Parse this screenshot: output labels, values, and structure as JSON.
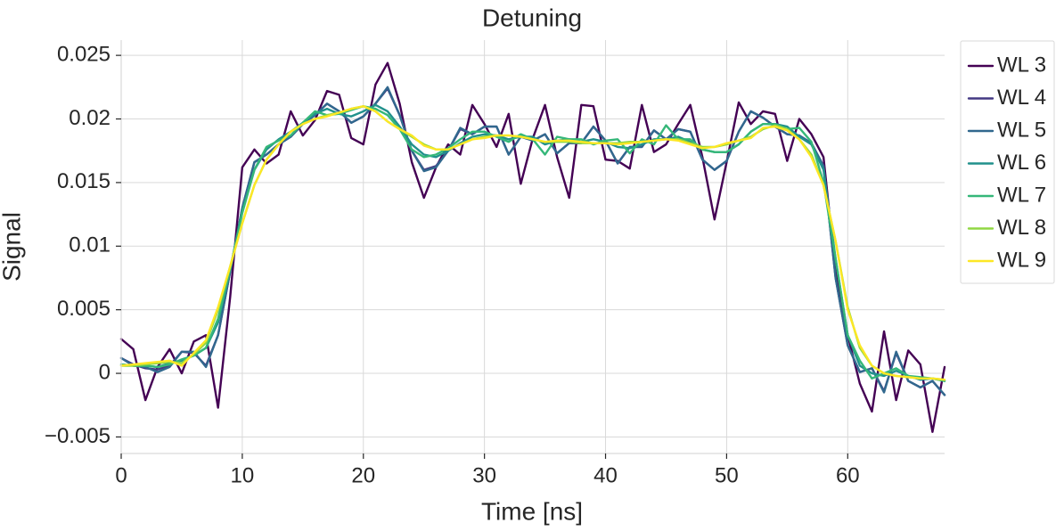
{
  "chart_data": {
    "type": "line",
    "title": "Detuning",
    "xlabel": "Time [ns]",
    "ylabel": "Signal",
    "xlim": [
      0,
      68
    ],
    "ylim": [
      -0.0063,
      0.0262
    ],
    "x_ticks": [
      0,
      10,
      20,
      30,
      40,
      50,
      60
    ],
    "x_tick_labels": [
      "0",
      "10",
      "20",
      "30",
      "40",
      "50",
      "60"
    ],
    "y_ticks": [
      -0.005,
      0,
      0.005,
      0.01,
      0.015,
      0.02,
      0.025
    ],
    "y_tick_labels": [
      "−0.005",
      "0",
      "0.005",
      "0.01",
      "0.015",
      "0.02",
      "0.025"
    ],
    "grid": true,
    "legend_position": "upper-right-outside",
    "x": [
      0,
      1,
      2,
      3,
      4,
      5,
      6,
      7,
      8,
      9,
      10,
      11,
      12,
      13,
      14,
      15,
      16,
      17,
      18,
      19,
      20,
      21,
      22,
      23,
      24,
      25,
      26,
      27,
      28,
      29,
      30,
      31,
      32,
      33,
      34,
      35,
      36,
      37,
      38,
      39,
      40,
      41,
      42,
      43,
      44,
      45,
      46,
      47,
      48,
      49,
      50,
      51,
      52,
      53,
      54,
      55,
      56,
      57,
      58,
      59,
      60,
      61,
      62,
      63,
      64,
      65,
      66,
      67,
      68
    ],
    "series": [
      {
        "name": "WL 3",
        "color": "#440154",
        "values": [
          0.0027,
          0.0019,
          -0.0021,
          0.0005,
          0.0019,
          0.0,
          0.0025,
          0.003,
          -0.0027,
          0.006,
          0.0162,
          0.0176,
          0.0165,
          0.0172,
          0.0206,
          0.0187,
          0.0199,
          0.0222,
          0.0219,
          0.0185,
          0.018,
          0.0227,
          0.0244,
          0.0212,
          0.0166,
          0.0138,
          0.0162,
          0.018,
          0.0172,
          0.0211,
          0.0196,
          0.0178,
          0.0204,
          0.0149,
          0.0185,
          0.0211,
          0.017,
          0.0138,
          0.0211,
          0.021,
          0.0168,
          0.0167,
          0.0161,
          0.0211,
          0.0174,
          0.018,
          0.0196,
          0.0211,
          0.017,
          0.0121,
          0.0166,
          0.0213,
          0.0196,
          0.0206,
          0.0204,
          0.0167,
          0.02,
          0.0188,
          0.017,
          0.008,
          0.003,
          -0.0008,
          -0.003,
          0.0033,
          -0.0021,
          0.0018,
          0.0007,
          -0.0046,
          0.0005
        ]
      },
      {
        "name": "WL 4",
        "color": "#443983",
        "values": [
          0.0012,
          0.0007,
          0.0004,
          0.0003,
          0.0006,
          0.0017,
          0.0016,
          0.0006,
          0.003,
          0.008,
          0.013,
          0.0166,
          0.0172,
          0.018,
          0.0186,
          0.0196,
          0.0203,
          0.0212,
          0.0206,
          0.0197,
          0.0202,
          0.0212,
          0.0224,
          0.0203,
          0.0175,
          0.016,
          0.0163,
          0.0175,
          0.0192,
          0.0188,
          0.0194,
          0.0194,
          0.0172,
          0.0186,
          0.0183,
          0.0188,
          0.0173,
          0.0181,
          0.0181,
          0.0194,
          0.0183,
          0.0165,
          0.0178,
          0.0178,
          0.0191,
          0.0184,
          0.0192,
          0.019,
          0.0168,
          0.016,
          0.0167,
          0.019,
          0.0206,
          0.0201,
          0.0194,
          0.0188,
          0.0187,
          0.0181,
          0.0163,
          0.0075,
          0.0022,
          0.0001,
          0.0004,
          -0.0014,
          0.0016,
          -0.0006,
          -0.0011,
          -0.0006,
          -0.0017
        ]
      },
      {
        "name": "WL 5",
        "color": "#31688e",
        "values": [
          0.0012,
          0.0006,
          0.0005,
          0.0001,
          0.0005,
          0.0017,
          0.0017,
          0.0005,
          0.003,
          0.008,
          0.013,
          0.0166,
          0.0172,
          0.018,
          0.0186,
          0.0196,
          0.0203,
          0.0212,
          0.0206,
          0.0197,
          0.0202,
          0.0212,
          0.0225,
          0.0203,
          0.0175,
          0.0159,
          0.0162,
          0.0175,
          0.0193,
          0.0188,
          0.0194,
          0.0194,
          0.0172,
          0.0186,
          0.0183,
          0.0188,
          0.0173,
          0.0181,
          0.0181,
          0.0194,
          0.0183,
          0.0165,
          0.0178,
          0.0178,
          0.0191,
          0.0184,
          0.0192,
          0.019,
          0.0168,
          0.016,
          0.0167,
          0.019,
          0.0206,
          0.0201,
          0.0194,
          0.0188,
          0.0187,
          0.0181,
          0.0163,
          0.0075,
          0.0022,
          0.0001,
          0.0004,
          -0.0015,
          0.0017,
          -0.0006,
          -0.0011,
          -0.0006,
          -0.0017
        ]
      },
      {
        "name": "WL 6",
        "color": "#21918c",
        "values": [
          0.0007,
          0.0006,
          0.0006,
          0.0005,
          0.0008,
          0.001,
          0.0014,
          0.002,
          0.004,
          0.0082,
          0.0128,
          0.016,
          0.0176,
          0.0184,
          0.019,
          0.0197,
          0.0204,
          0.0208,
          0.0204,
          0.0202,
          0.0206,
          0.0211,
          0.0206,
          0.0194,
          0.018,
          0.0172,
          0.017,
          0.0175,
          0.0181,
          0.0186,
          0.0188,
          0.0187,
          0.0184,
          0.0186,
          0.0186,
          0.018,
          0.0183,
          0.0184,
          0.0182,
          0.0184,
          0.0182,
          0.0178,
          0.0177,
          0.018,
          0.0184,
          0.0184,
          0.0186,
          0.0182,
          0.0176,
          0.0174,
          0.0174,
          0.018,
          0.019,
          0.0196,
          0.0196,
          0.0194,
          0.0186,
          0.018,
          0.016,
          0.009,
          0.003,
          0.0006,
          0.0,
          -0.0002,
          0.0002,
          -0.0002,
          -0.0005,
          -0.0004,
          -0.0006
        ]
      },
      {
        "name": "WL 7",
        "color": "#35b779",
        "values": [
          0.0007,
          0.0006,
          0.0006,
          0.0005,
          0.0007,
          0.0011,
          0.0014,
          0.002,
          0.0043,
          0.0082,
          0.0126,
          0.016,
          0.0178,
          0.0183,
          0.0187,
          0.0197,
          0.0206,
          0.0203,
          0.0204,
          0.0207,
          0.021,
          0.0208,
          0.0203,
          0.0192,
          0.0176,
          0.017,
          0.0172,
          0.0177,
          0.0184,
          0.019,
          0.019,
          0.0186,
          0.0182,
          0.0188,
          0.0184,
          0.0172,
          0.0186,
          0.0184,
          0.0184,
          0.018,
          0.0183,
          0.0184,
          0.0173,
          0.0184,
          0.018,
          0.0195,
          0.0184,
          0.0184,
          0.0176,
          0.0174,
          0.0174,
          0.018,
          0.019,
          0.0196,
          0.0196,
          0.0192,
          0.0193,
          0.0182,
          0.015,
          0.009,
          0.003,
          0.001,
          -0.0004,
          0.0,
          0.0004,
          -0.0002,
          -0.0003,
          -0.0004,
          -0.0006
        ]
      },
      {
        "name": "WL 8",
        "color": "#90d743",
        "values": [
          0.0006,
          0.0006,
          0.0007,
          0.0008,
          0.0009,
          0.0008,
          0.0015,
          0.0024,
          0.005,
          0.0084,
          0.0118,
          0.0148,
          0.0168,
          0.018,
          0.019,
          0.0196,
          0.02,
          0.0203,
          0.0205,
          0.0208,
          0.021,
          0.0206,
          0.0198,
          0.0192,
          0.0186,
          0.018,
          0.0176,
          0.0176,
          0.018,
          0.0184,
          0.0186,
          0.0187,
          0.0187,
          0.0186,
          0.0184,
          0.0182,
          0.0182,
          0.0182,
          0.0181,
          0.0181,
          0.0181,
          0.0181,
          0.0182,
          0.0182,
          0.0183,
          0.0184,
          0.0184,
          0.0181,
          0.0178,
          0.0178,
          0.018,
          0.0183,
          0.0186,
          0.0192,
          0.0195,
          0.0192,
          0.0184,
          0.0172,
          0.0148,
          0.0104,
          0.0052,
          0.002,
          0.0006,
          0.0,
          -0.0002,
          -0.0003,
          -0.0004,
          -0.0004,
          -0.0005
        ]
      },
      {
        "name": "WL 9",
        "color": "#fde725",
        "values": [
          0.0006,
          0.0007,
          0.0008,
          0.0009,
          0.001,
          0.0006,
          0.0016,
          0.0026,
          0.0052,
          0.0084,
          0.0118,
          0.0148,
          0.0168,
          0.018,
          0.019,
          0.0196,
          0.02,
          0.0202,
          0.0205,
          0.0208,
          0.021,
          0.0206,
          0.0198,
          0.0192,
          0.0187,
          0.0179,
          0.0176,
          0.0176,
          0.018,
          0.0184,
          0.0185,
          0.0187,
          0.0187,
          0.0186,
          0.0184,
          0.0182,
          0.0183,
          0.0183,
          0.0182,
          0.0181,
          0.0181,
          0.018,
          0.0181,
          0.0182,
          0.0183,
          0.0184,
          0.0183,
          0.018,
          0.0177,
          0.0178,
          0.0181,
          0.0183,
          0.0185,
          0.0193,
          0.0194,
          0.0191,
          0.0184,
          0.017,
          0.0148,
          0.0104,
          0.005,
          0.0022,
          0.0006,
          0.0,
          -0.0002,
          -0.0003,
          -0.0004,
          -0.0004,
          -0.0005
        ]
      }
    ]
  }
}
